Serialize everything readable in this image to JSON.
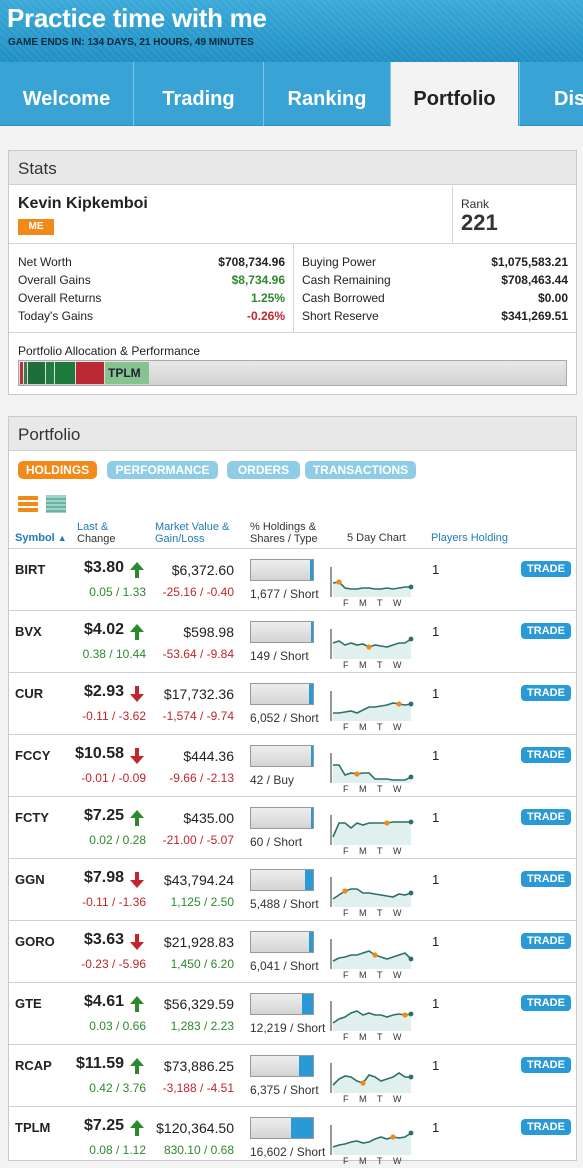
{
  "header": {
    "title": "Practice time with me",
    "ends_label": "GAME ENDS IN:",
    "ends_value": "134 DAYS, 21 HOURS, 49 MINUTES"
  },
  "tabs": [
    "Welcome",
    "Trading",
    "Ranking",
    "Portfolio",
    "Dis"
  ],
  "stats": {
    "title": "Stats",
    "name": "Kevin Kipkemboi",
    "badge": "ME",
    "rank_label": "Rank",
    "rank": "221",
    "left": [
      {
        "label": "Net Worth",
        "value": "$708,734.96",
        "color": "normal"
      },
      {
        "label": "Overall Gains",
        "value": "$8,734.96",
        "color": "green"
      },
      {
        "label": "Overall Returns",
        "value": "1.25%",
        "color": "green"
      },
      {
        "label": "Today's Gains",
        "value": "-0.26%",
        "color": "red"
      }
    ],
    "right": [
      {
        "label": "Buying Power",
        "value": "$1,075,583.21"
      },
      {
        "label": "Cash Remaining",
        "value": "$708,463.44"
      },
      {
        "label": "Cash Borrowed",
        "value": "$0.00"
      },
      {
        "label": "Short Reserve",
        "value": "$341,269.51"
      }
    ],
    "alloc_label": "Portfolio Allocation & Performance",
    "alloc_tag": "TPLM"
  },
  "portfolio": {
    "title": "Portfolio",
    "tabs": [
      "HOLDINGS",
      "PERFORMANCE",
      "ORDERS",
      "TRANSACTIONS"
    ],
    "cols": {
      "symbol": "Symbol",
      "last1": "Last &",
      "last2": "Change",
      "mv1": "Market Value &",
      "mv2": "Gain/Loss",
      "hold1": "% Holdings &",
      "hold2": "Shares / Type",
      "chart": "5 Day Chart",
      "players": "Players Holding"
    },
    "days": [
      "F",
      "M",
      "T",
      "W"
    ],
    "trade_label": "TRADE",
    "rows": [
      {
        "sym": "BIRT",
        "last": "$3.80",
        "dir": "up",
        "chg": "0.05 / 1.33",
        "mv": "$6,372.60",
        "gl": "-25.16 / -0.40",
        "hold": 0.05,
        "shares": "1,677 / Short",
        "players": "1"
      },
      {
        "sym": "BVX",
        "last": "$4.02",
        "dir": "up",
        "chg": "0.38 / 10.44",
        "mv": "$598.98",
        "gl": "-53.64 / -9.84",
        "hold": 0.01,
        "shares": "149 / Short",
        "players": "1"
      },
      {
        "sym": "CUR",
        "last": "$2.93",
        "dir": "down",
        "chg": "-0.11 / -3.62",
        "mv": "$17,732.36",
        "gl": "-1,574 / -9.74",
        "hold": 0.07,
        "shares": "6,052 / Short",
        "players": "1"
      },
      {
        "sym": "FCCY",
        "last": "$10.58",
        "dir": "down",
        "chg": "-0.01 / -0.09",
        "mv": "$444.36",
        "gl": "-9.66 / -2.13",
        "hold": 0.01,
        "shares": "42 / Buy",
        "players": "1"
      },
      {
        "sym": "FCTY",
        "last": "$7.25",
        "dir": "up",
        "chg": "0.02 / 0.28",
        "mv": "$435.00",
        "gl": "-21.00 / -5.07",
        "hold": 0.01,
        "shares": "60 / Short",
        "players": "1"
      },
      {
        "sym": "GGN",
        "last": "$7.98",
        "dir": "down",
        "chg": "-0.11 / -1.36",
        "mv": "$43,794.24",
        "gl": "1,125 / 2.50",
        "hold": 0.13,
        "shares": "5,488 / Short",
        "players": "1"
      },
      {
        "sym": "GORO",
        "last": "$3.63",
        "dir": "down",
        "chg": "-0.23 / -5.96",
        "mv": "$21,928.83",
        "gl": "1,450 / 6.20",
        "hold": 0.07,
        "shares": "6,041 / Short",
        "players": "1"
      },
      {
        "sym": "GTE",
        "last": "$4.61",
        "dir": "up",
        "chg": "0.03 / 0.66",
        "mv": "$56,329.59",
        "gl": "1,283 / 2.23",
        "hold": 0.18,
        "shares": "12,219 / Short",
        "players": "1"
      },
      {
        "sym": "RCAP",
        "last": "$11.59",
        "dir": "up",
        "chg": "0.42 / 3.76",
        "mv": "$73,886.25",
        "gl": "-3,188 / -4.51",
        "hold": 0.23,
        "shares": "6,375 / Short",
        "players": "1"
      },
      {
        "sym": "TPLM",
        "last": "$7.25",
        "dir": "up",
        "chg": "0.08 / 1.12",
        "mv": "$120,364.50",
        "gl": "830.10 / 0.68",
        "hold": 0.35,
        "shares": "16,602 / Short",
        "players": "1"
      }
    ]
  },
  "colors": {
    "accent": "#2a9ad6",
    "orange": "#f28a1a",
    "green": "#2c8a2c",
    "red": "#c0262b"
  }
}
